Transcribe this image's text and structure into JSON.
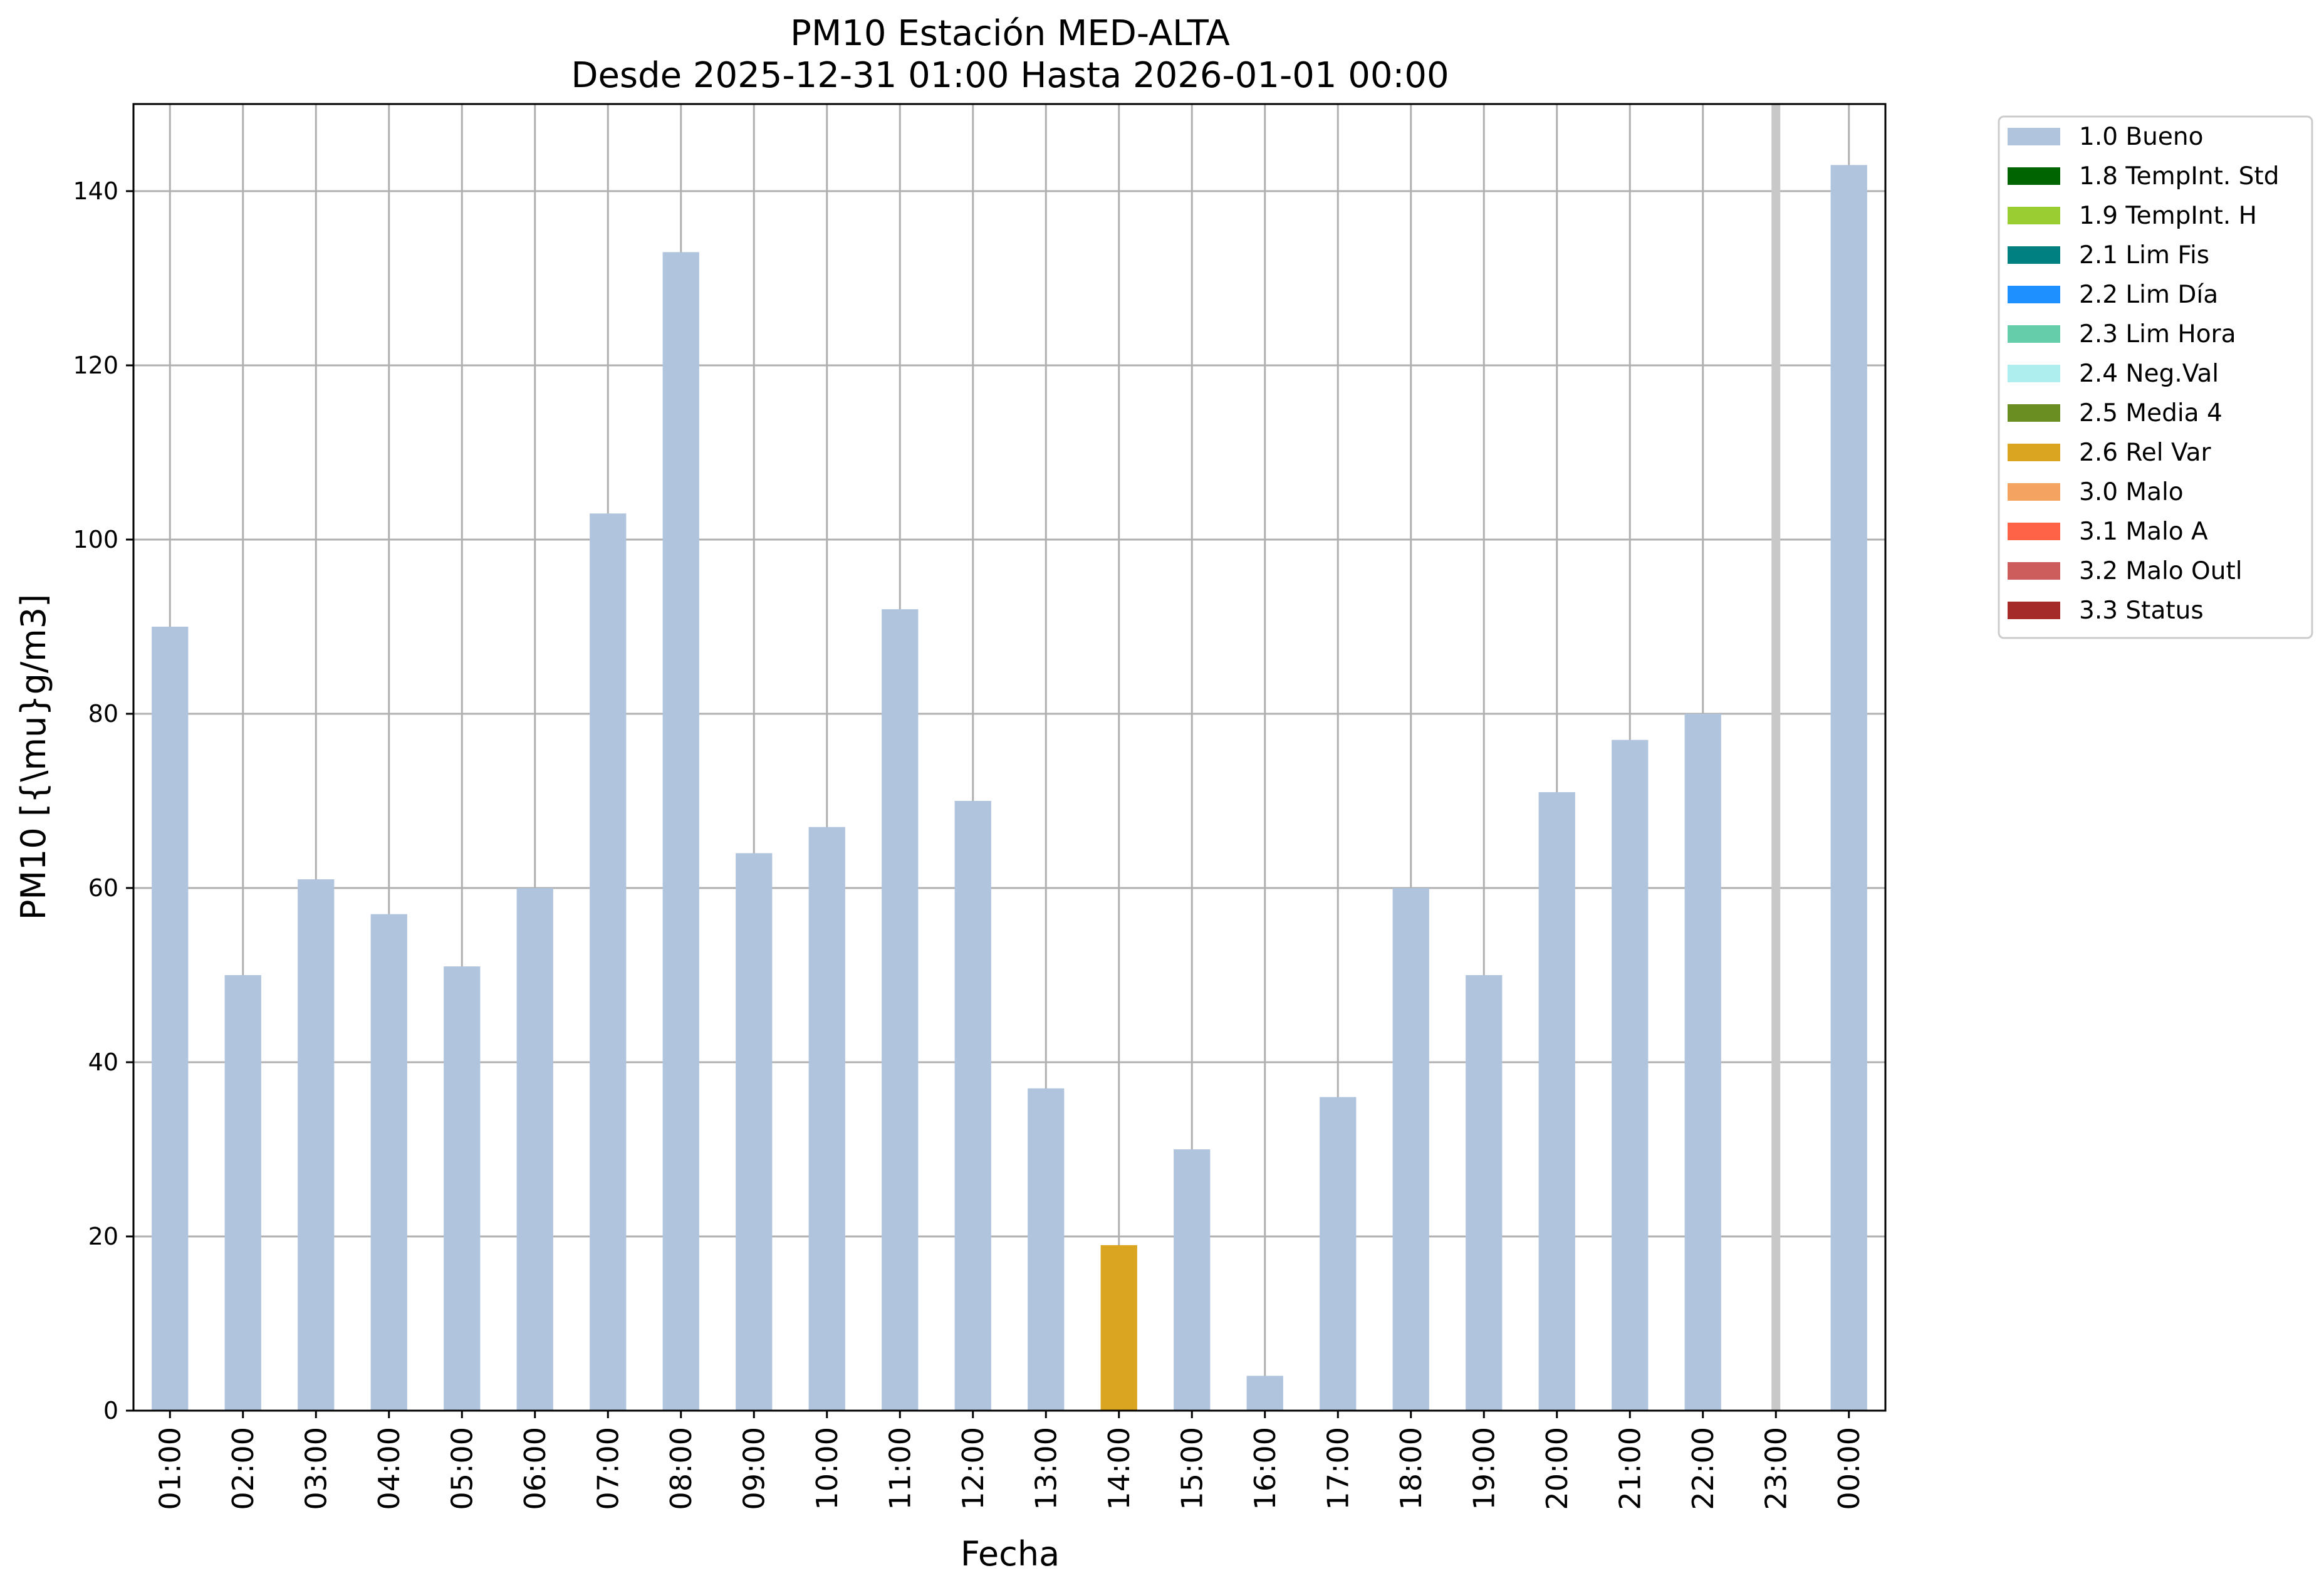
{
  "chart_data": {
    "type": "bar",
    "title_line1": "PM10 Estación MED-ALTA",
    "title_line2": "Desde 2025-12-31 01:00 Hasta 2026-01-01 00:00",
    "xlabel": "Fecha",
    "ylabel": "PM10 [{\\mu}g/m3]",
    "ylim": [
      0,
      150
    ],
    "yticks": [
      "0",
      "20",
      "40",
      "60",
      "80",
      "100",
      "120",
      "140"
    ],
    "ytick_values": [
      0,
      20,
      40,
      60,
      80,
      100,
      120,
      140
    ],
    "grid": true,
    "legend_placement": "outside-right-top",
    "categories": [
      "01:00",
      "02:00",
      "03:00",
      "04:00",
      "05:00",
      "06:00",
      "07:00",
      "08:00",
      "09:00",
      "10:00",
      "11:00",
      "12:00",
      "13:00",
      "14:00",
      "15:00",
      "16:00",
      "17:00",
      "18:00",
      "19:00",
      "20:00",
      "21:00",
      "22:00",
      "23:00",
      "00:00"
    ],
    "values": [
      90,
      50,
      61,
      57,
      51,
      60,
      103,
      133,
      64,
      67,
      92,
      70,
      37,
      19,
      30,
      4,
      36,
      60,
      50,
      71,
      77,
      80,
      null,
      143
    ],
    "flags": [
      "1.0 Bueno",
      "1.0 Bueno",
      "1.0 Bueno",
      "1.0 Bueno",
      "1.0 Bueno",
      "1.0 Bueno",
      "1.0 Bueno",
      "1.0 Bueno",
      "1.0 Bueno",
      "1.0 Bueno",
      "1.0 Bueno",
      "1.0 Bueno",
      "1.0 Bueno",
      "2.6 Rel Var",
      "1.0 Bueno",
      "1.0 Bueno",
      "1.0 Bueno",
      "1.0 Bueno",
      "1.0 Bueno",
      "1.0 Bueno",
      "1.0 Bueno",
      "1.0 Bueno",
      null,
      "1.0 Bueno"
    ],
    "missing_marker_category": "23:00",
    "missing_marker_color": "#c8c8c8",
    "legend": [
      {
        "label": "1.0 Bueno",
        "color": "#b0c4de"
      },
      {
        "label": "1.8 TempInt. Std",
        "color": "#006400"
      },
      {
        "label": "1.9 TempInt. H",
        "color": "#9acd32"
      },
      {
        "label": "2.1 Lim Fis",
        "color": "#008080"
      },
      {
        "label": "2.2 Lim Día",
        "color": "#1e90ff"
      },
      {
        "label": "2.3 Lim Hora",
        "color": "#66cdaa"
      },
      {
        "label": "2.4 Neg.Val",
        "color": "#afeeee"
      },
      {
        "label": "2.5 Media 4",
        "color": "#6b8e23"
      },
      {
        "label": "2.6 Rel Var",
        "color": "#daa520"
      },
      {
        "label": "3.0 Malo",
        "color": "#f4a460"
      },
      {
        "label": "3.1 Malo A",
        "color": "#ff6347"
      },
      {
        "label": "3.2 Malo Outl",
        "color": "#cd5c5c"
      },
      {
        "label": "3.3 Status",
        "color": "#a52a2a"
      }
    ]
  }
}
